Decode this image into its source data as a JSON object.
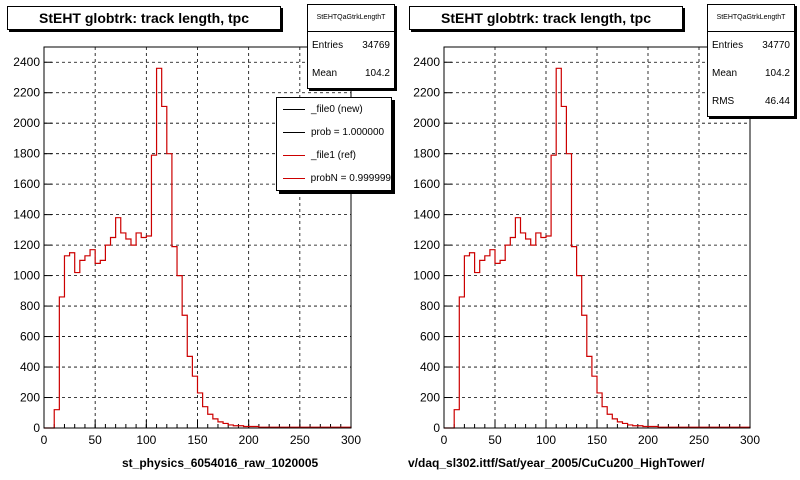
{
  "chart_data": [
    {
      "type": "bar",
      "style": "step-histogram",
      "title": "StEHT globtrk: track length, tpc",
      "xlabel": "st_physics_6054016_raw_1020005",
      "xlim": [
        0,
        300
      ],
      "ylim": [
        0,
        2500
      ],
      "x_ticks": [
        "0",
        "50",
        "100",
        "150",
        "200",
        "250",
        "300"
      ],
      "y_ticks": [
        "0",
        "200",
        "400",
        "600",
        "800",
        "1000",
        "1200",
        "1400",
        "1600",
        "1800",
        "2000",
        "2200",
        "2400"
      ],
      "grid": true,
      "stats": {
        "name": "StEHTQaGtrkLengthT",
        "entries_label": "Entries",
        "entries": "34769",
        "mean_label": "Mean",
        "mean": "104.2"
      },
      "legend": {
        "placement": "top-right",
        "entries": [
          {
            "label": "_file0 (new)",
            "color": "#000000"
          },
          {
            "label": "prob = 1.000000",
            "color": "#000000"
          },
          {
            "label": "_file1 (ref)",
            "color": "#cc0000"
          },
          {
            "label": "probN = 0.999999",
            "color": "#cc0000"
          }
        ]
      },
      "series": [
        {
          "name": "_file1 (ref)",
          "color": "#cc0000",
          "bin_width": 5,
          "values": [
            0,
            0,
            120,
            860,
            1130,
            1150,
            1020,
            1100,
            1130,
            1170,
            1080,
            1100,
            1200,
            1250,
            1380,
            1280,
            1240,
            1200,
            1280,
            1250,
            1260,
            1790,
            2360,
            2110,
            1800,
            1190,
            1000,
            740,
            470,
            340,
            230,
            140,
            90,
            60,
            40,
            30,
            20,
            15,
            15,
            10,
            10,
            10,
            5,
            5,
            5,
            5,
            5,
            5,
            5,
            5,
            5,
            5,
            5,
            5,
            5,
            5,
            5,
            5,
            5,
            5
          ]
        }
      ]
    },
    {
      "type": "bar",
      "style": "step-histogram",
      "title": "StEHT globtrk: track length, tpc",
      "xlabel": "v/daq_sl302.ittf/Sat/year_2005/CuCu200_HighTower/",
      "xlim": [
        0,
        300
      ],
      "ylim": [
        0,
        2500
      ],
      "x_ticks": [
        "0",
        "50",
        "100",
        "150",
        "200",
        "250",
        "300"
      ],
      "y_ticks": [
        "0",
        "200",
        "400",
        "600",
        "800",
        "1000",
        "1200",
        "1400",
        "1600",
        "1800",
        "2000",
        "2200",
        "2400"
      ],
      "grid": true,
      "stats": {
        "name": "StEHTQaGtrkLengthT",
        "entries_label": "Entries",
        "entries": "34770",
        "mean_label": "Mean",
        "mean": "104.2",
        "rms_label": "RMS",
        "rms": "46.44"
      },
      "series": [
        {
          "color": "#cc0000",
          "bin_width": 5,
          "values": [
            0,
            0,
            120,
            860,
            1130,
            1150,
            1020,
            1100,
            1130,
            1170,
            1080,
            1100,
            1200,
            1250,
            1380,
            1280,
            1240,
            1200,
            1280,
            1250,
            1260,
            1790,
            2360,
            2110,
            1800,
            1190,
            1000,
            740,
            470,
            340,
            230,
            140,
            90,
            60,
            40,
            30,
            20,
            15,
            15,
            10,
            10,
            10,
            5,
            5,
            5,
            5,
            5,
            5,
            5,
            5,
            5,
            5,
            5,
            5,
            5,
            5,
            5,
            5,
            5,
            5
          ]
        }
      ]
    }
  ]
}
